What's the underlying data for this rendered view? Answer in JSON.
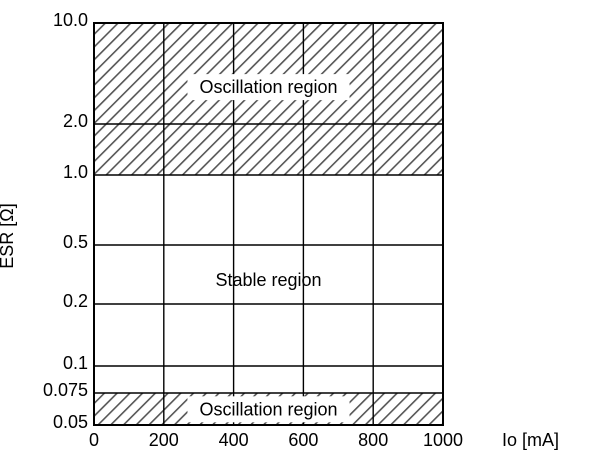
{
  "chart_data": {
    "type": "area",
    "title": "",
    "xlabel": "Io [mA]",
    "ylabel": "ESR [Ω]",
    "xlim": [
      0,
      1000
    ],
    "ylim": [
      0.05,
      10.0
    ],
    "y_scale": "log",
    "grid": true,
    "x_ticks": [
      "0",
      "200",
      "400",
      "600",
      "800",
      "1000"
    ],
    "x_tick_values": [
      0,
      200,
      400,
      600,
      800,
      1000
    ],
    "y_ticks": [
      "10.0",
      "2.0",
      "1.0",
      "0.5",
      "0.2",
      "0.1",
      "0.075",
      "0.05"
    ],
    "y_tick_values": [
      10.0,
      2.0,
      1.0,
      0.5,
      0.2,
      0.1,
      0.075,
      0.05
    ],
    "regions": [
      {
        "label": "Oscillation region",
        "x_range": [
          0,
          1000
        ],
        "y_range": [
          1.0,
          10.0
        ],
        "fill": "hatched",
        "label_x": 500,
        "label_y": 3.6
      },
      {
        "label": "Stable region",
        "x_range": [
          0,
          1000
        ],
        "y_range": [
          0.075,
          1.0
        ],
        "fill": "none",
        "label_x": 500,
        "label_y": 0.29
      },
      {
        "label": "Oscillation region",
        "x_range": [
          0,
          1000
        ],
        "y_range": [
          0.05,
          0.075
        ],
        "fill": "hatched",
        "label_x": 500,
        "label_y": 0.061
      }
    ],
    "colors": {
      "frame": "#000000",
      "hatch": "#555555",
      "label_background": "#ffffff"
    }
  }
}
